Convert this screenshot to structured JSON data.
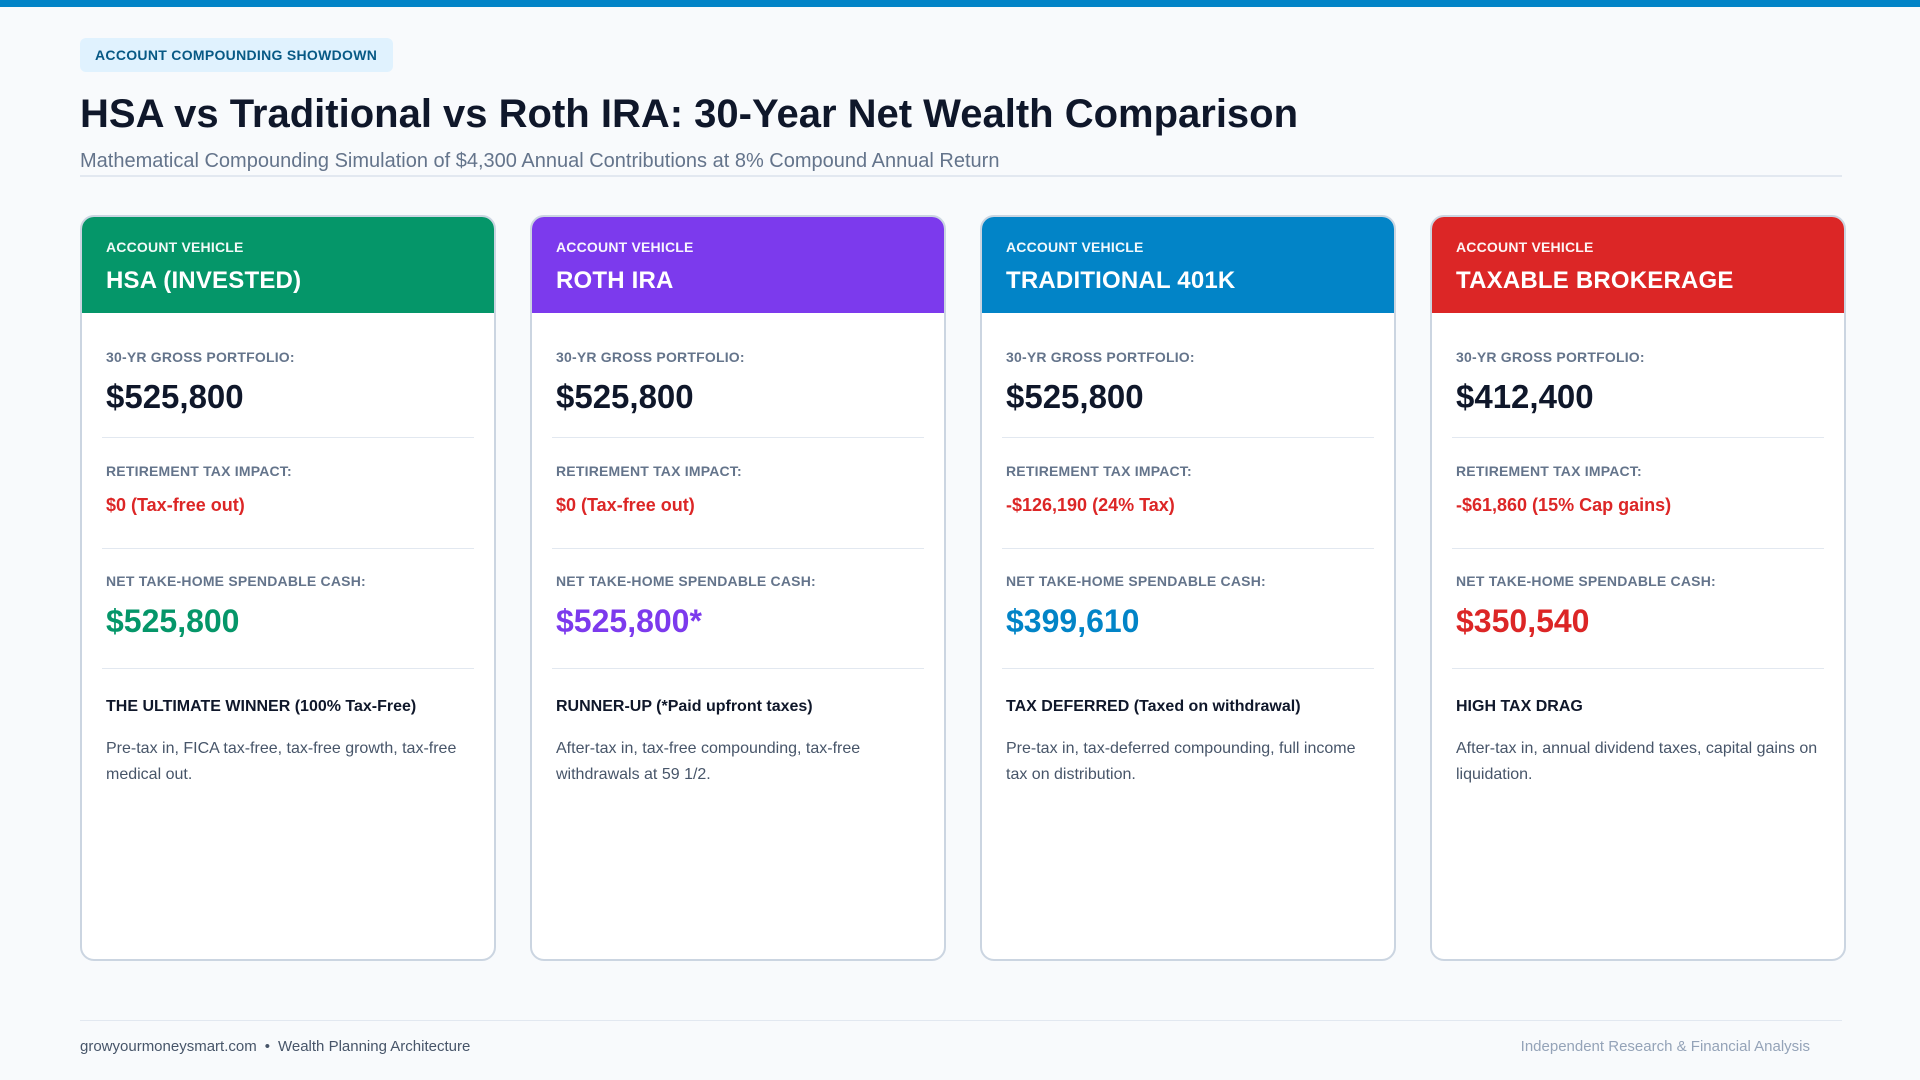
{
  "header": {
    "badge": "ACCOUNT COMPOUNDING SHOWDOWN",
    "title": "HSA vs Traditional vs Roth IRA: 30-Year Net Wealth Comparison",
    "subtitle": "Mathematical Compounding Simulation of $4,300 Annual Contributions at 8% Compound Annual Return"
  },
  "labels": {
    "eyebrow": "ACCOUNT VEHICLE",
    "gross": "30-YR GROSS PORTFOLIO:",
    "tax": "RETIREMENT TAX IMPACT:",
    "net": "NET TAKE-HOME SPENDABLE CASH:"
  },
  "cards": [
    {
      "name": "HSA (INVESTED)",
      "color": "#059669",
      "gross": "$525,800",
      "tax": "$0 (Tax-free out)",
      "net": "$525,800",
      "verdict": "THE ULTIMATE WINNER (100% Tax-Free)",
      "description": "Pre-tax in, FICA tax-free, tax-free growth, tax-free medical out."
    },
    {
      "name": "ROTH IRA",
      "color": "#7c3aed",
      "gross": "$525,800",
      "tax": "$0 (Tax-free out)",
      "net": "$525,800*",
      "verdict": "RUNNER-UP (*Paid upfront taxes)",
      "description": "After-tax in, tax-free compounding, tax-free withdrawals at 59 1/2."
    },
    {
      "name": "TRADITIONAL 401K",
      "color": "#0284c7",
      "gross": "$525,800",
      "tax": "-$126,190 (24% Tax)",
      "net": "$399,610",
      "verdict": "TAX DEFERRED (Taxed on withdrawal)",
      "description": "Pre-tax in, tax-deferred compounding, full income tax on distribution."
    },
    {
      "name": "TAXABLE BROKERAGE",
      "color": "#dc2626",
      "gross": "$412,400",
      "tax": "-$61,860 (15% Cap gains)",
      "net": "$350,540",
      "verdict": "HIGH TAX DRAG",
      "description": "After-tax in, annual dividend taxes, capital gains on liquidation."
    }
  ],
  "footer": {
    "site": "growyourmoneysmart.com",
    "separator": "•",
    "section": "Wealth Planning Architecture",
    "tagline": "Independent Research & Financial Analysis"
  }
}
